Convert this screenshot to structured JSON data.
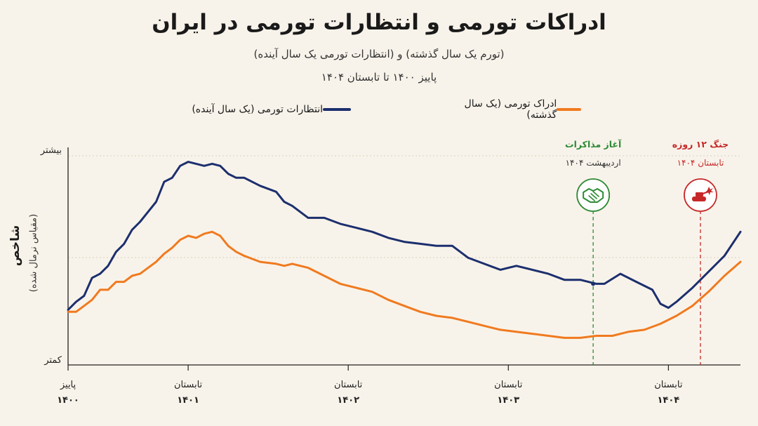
{
  "header": {
    "title": "ادراکات تورمی و انتظارات تورمی در ایران",
    "subtitle": "(تورم یک سال گذشته) و (انتظارات تورمی یک سال آینده)",
    "period": "پاییز ۱۴۰۰ تا تابستان ۱۴۰۴"
  },
  "axis": {
    "ylabel": "شاخص",
    "ylabel_sub": "(مقیاس نرمال شده)",
    "ytop": "بیشتر",
    "ybottom": "کمتر"
  },
  "chart_data": {
    "type": "line",
    "title": "ادراکات تورمی و انتظارات تورمی در ایران",
    "x_ticks": [
      {
        "season": "پاییز",
        "year": "۱۴۰۰",
        "t": 0
      },
      {
        "season": "تابستان",
        "year": "۱۴۰۱",
        "t": 0.75
      },
      {
        "season": "تابستان",
        "year": "۱۴۰۲",
        "t": 1.75
      },
      {
        "season": "تابستان",
        "year": "۱۴۰۳",
        "t": 2.75
      },
      {
        "season": "تابستان",
        "year": "۱۴۰۴",
        "t": 3.75
      }
    ],
    "xlim": [
      0,
      4.2
    ],
    "ylim": [
      0,
      100
    ],
    "grid": "horizontal-dotted",
    "legend": "top",
    "series": [
      {
        "name": "انتظارات تورمی (یک سال آینده)",
        "color": "#1c2f6e",
        "points": [
          [
            0,
            23
          ],
          [
            0.05,
            27
          ],
          [
            0.1,
            30
          ],
          [
            0.15,
            39
          ],
          [
            0.2,
            41
          ],
          [
            0.25,
            45
          ],
          [
            0.3,
            52
          ],
          [
            0.35,
            56
          ],
          [
            0.4,
            63
          ],
          [
            0.45,
            67
          ],
          [
            0.5,
            72
          ],
          [
            0.55,
            77
          ],
          [
            0.6,
            87
          ],
          [
            0.65,
            89
          ],
          [
            0.7,
            95
          ],
          [
            0.75,
            97
          ],
          [
            0.8,
            96
          ],
          [
            0.85,
            95
          ],
          [
            0.9,
            96
          ],
          [
            0.95,
            95
          ],
          [
            1.0,
            91
          ],
          [
            1.05,
            89
          ],
          [
            1.1,
            89
          ],
          [
            1.2,
            85
          ],
          [
            1.3,
            82
          ],
          [
            1.35,
            77
          ],
          [
            1.4,
            75
          ],
          [
            1.5,
            69
          ],
          [
            1.6,
            69
          ],
          [
            1.7,
            66
          ],
          [
            1.8,
            64
          ],
          [
            1.9,
            62
          ],
          [
            2.0,
            59
          ],
          [
            2.1,
            57
          ],
          [
            2.2,
            56
          ],
          [
            2.3,
            55
          ],
          [
            2.4,
            55
          ],
          [
            2.5,
            49
          ],
          [
            2.6,
            46
          ],
          [
            2.7,
            43
          ],
          [
            2.8,
            45
          ],
          [
            2.9,
            43
          ],
          [
            3.0,
            41
          ],
          [
            3.1,
            38
          ],
          [
            3.2,
            38
          ],
          [
            3.3,
            36
          ],
          [
            3.35,
            36
          ],
          [
            3.45,
            41
          ],
          [
            3.55,
            37
          ],
          [
            3.65,
            33
          ],
          [
            3.7,
            26
          ],
          [
            3.75,
            24
          ],
          [
            3.8,
            27
          ],
          [
            3.9,
            34
          ],
          [
            4.0,
            42
          ],
          [
            4.1,
            50
          ],
          [
            4.2,
            62
          ]
        ]
      },
      {
        "name": "ادراک تورمی (یک سال گذشته)",
        "color": "#f07a1f",
        "points": [
          [
            0,
            22
          ],
          [
            0.05,
            22
          ],
          [
            0.1,
            25
          ],
          [
            0.15,
            28
          ],
          [
            0.2,
            33
          ],
          [
            0.25,
            33
          ],
          [
            0.3,
            37
          ],
          [
            0.35,
            37
          ],
          [
            0.4,
            40
          ],
          [
            0.45,
            41
          ],
          [
            0.5,
            44
          ],
          [
            0.55,
            47
          ],
          [
            0.6,
            51
          ],
          [
            0.65,
            54
          ],
          [
            0.7,
            58
          ],
          [
            0.75,
            60
          ],
          [
            0.8,
            59
          ],
          [
            0.85,
            61
          ],
          [
            0.9,
            62
          ],
          [
            0.95,
            60
          ],
          [
            1.0,
            55
          ],
          [
            1.05,
            52
          ],
          [
            1.1,
            50
          ],
          [
            1.2,
            47
          ],
          [
            1.3,
            46
          ],
          [
            1.35,
            45
          ],
          [
            1.4,
            46
          ],
          [
            1.5,
            44
          ],
          [
            1.6,
            40
          ],
          [
            1.7,
            36
          ],
          [
            1.8,
            34
          ],
          [
            1.9,
            32
          ],
          [
            2.0,
            28
          ],
          [
            2.1,
            25
          ],
          [
            2.2,
            22
          ],
          [
            2.3,
            20
          ],
          [
            2.4,
            19
          ],
          [
            2.5,
            17
          ],
          [
            2.6,
            15
          ],
          [
            2.7,
            13
          ],
          [
            2.8,
            12
          ],
          [
            2.9,
            11
          ],
          [
            3.0,
            10
          ],
          [
            3.1,
            9
          ],
          [
            3.2,
            9
          ],
          [
            3.3,
            10
          ],
          [
            3.4,
            10
          ],
          [
            3.5,
            12
          ],
          [
            3.6,
            13
          ],
          [
            3.7,
            16
          ],
          [
            3.8,
            20
          ],
          [
            3.9,
            25
          ],
          [
            4.0,
            32
          ],
          [
            4.1,
            40
          ],
          [
            4.2,
            47
          ]
        ]
      }
    ],
    "events": [
      {
        "t": 3.28,
        "label": "آغاز مذاکرات",
        "date": "اردیبهشت ۱۴۰۴",
        "color": "#2e8a35",
        "icon": "handshake-icon"
      },
      {
        "t": 3.95,
        "label": "جنگ ۱۲ روزه",
        "date": "تابستان ۱۴۰۴",
        "color": "#c62828",
        "icon": "tank-icon"
      }
    ]
  }
}
